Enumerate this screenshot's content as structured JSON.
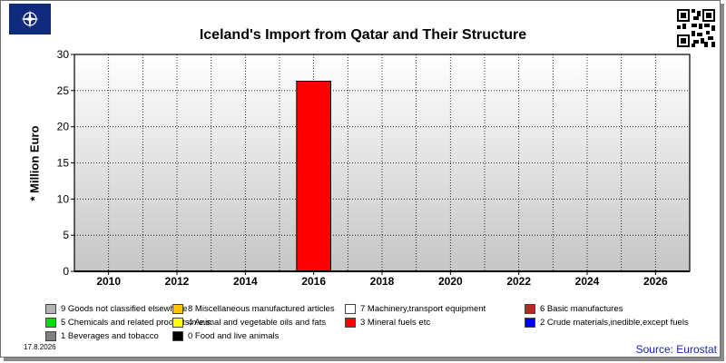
{
  "header": {
    "title": "Iceland's Import from Qatar and Their Structure",
    "date": "17.8.2026",
    "source": "Source: Eurostat"
  },
  "chart_data": {
    "type": "bar",
    "stacked": true,
    "title": "Iceland's Import from Qatar and Their Structure",
    "xlabel": "",
    "ylabel": "* Million Euro",
    "x_ticks": [
      "2010",
      "2012",
      "2014",
      "2016",
      "2018",
      "2020",
      "2022",
      "2024",
      "2026"
    ],
    "ylim": [
      0,
      30
    ],
    "y_ticks": [
      0,
      5,
      10,
      15,
      20,
      25,
      30
    ],
    "grid": true,
    "x": [
      "2016"
    ],
    "series": [
      {
        "name": "3 Mineral fuels etc",
        "color": "#ff0000",
        "values": [
          26.3
        ]
      }
    ]
  },
  "legend": [
    {
      "label": "9 Goods not classified elsewhere",
      "color": "#b4b4b4"
    },
    {
      "label": "8 Miscellaneous manufactured articles",
      "color": "#ffc400"
    },
    {
      "label": "7 Machinery,transport equipment",
      "color": "#ffffff"
    },
    {
      "label": "6 Basic manufactures",
      "color": "#b42828"
    },
    {
      "label": "5 Chemicals and related products,n.e.s.",
      "color": "#00e000"
    },
    {
      "label": "4 Animal and vegetable oils and fats",
      "color": "#ffff00"
    },
    {
      "label": "3 Mineral fuels etc",
      "color": "#ff0000"
    },
    {
      "label": "2 Crude materials,inedible,except fuels",
      "color": "#0000ff"
    },
    {
      "label": "1 Beverages and tobacco",
      "color": "#7f7f7f"
    },
    {
      "label": "0 Food and live animals",
      "color": "#000000"
    }
  ]
}
